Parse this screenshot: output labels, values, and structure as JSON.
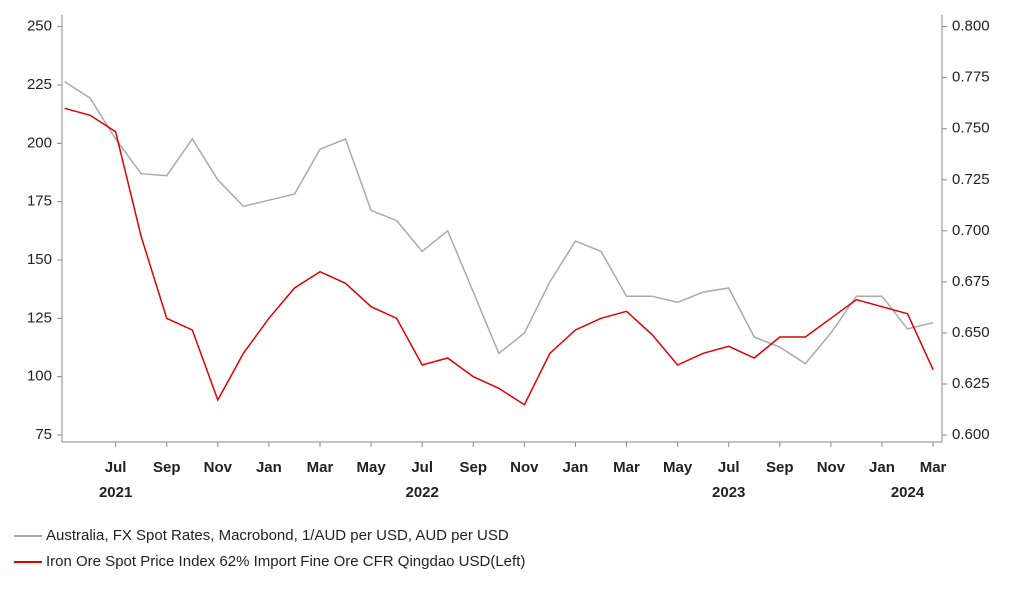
{
  "chart_data": {
    "type": "line",
    "x": [
      "2021-05",
      "2021-06",
      "2021-07",
      "2021-08",
      "2021-09",
      "2021-10",
      "2021-11",
      "2021-12",
      "2022-01",
      "2022-02",
      "2022-03",
      "2022-04",
      "2022-05",
      "2022-06",
      "2022-07",
      "2022-08",
      "2022-09",
      "2022-10",
      "2022-11",
      "2022-12",
      "2023-01",
      "2023-02",
      "2023-03",
      "2023-04",
      "2023-05",
      "2023-06",
      "2023-07",
      "2023-08",
      "2023-09",
      "2023-10",
      "2023-11",
      "2023-12",
      "2024-01",
      "2024-02",
      "2024-03"
    ],
    "series": [
      {
        "name": "Australia, FX Spot Rates, Macrobond, 1/AUD per USD, AUD per USD",
        "color": "#aaaaaa",
        "axis": "y2",
        "values": [
          0.773,
          0.765,
          0.745,
          0.728,
          0.727,
          0.745,
          0.725,
          0.712,
          0.715,
          0.718,
          0.74,
          0.745,
          0.71,
          0.705,
          0.69,
          0.7,
          0.67,
          0.64,
          0.65,
          0.675,
          0.695,
          0.69,
          0.668,
          0.668,
          0.665,
          0.67,
          0.672,
          0.648,
          0.643,
          0.635,
          0.65,
          0.668,
          0.668,
          0.652,
          0.655
        ]
      },
      {
        "name": "Iron Ore Spot Price Index 62% Import Fine Ore CFR Qingdao USD(Left)",
        "color": "#e00000",
        "values": [
          215,
          212,
          205,
          160,
          125,
          120,
          90,
          110,
          125,
          138,
          145,
          140,
          130,
          125,
          105,
          108,
          100,
          95,
          88,
          110,
          120,
          125,
          128,
          118,
          105,
          110,
          113,
          108,
          117,
          117,
          125,
          133,
          130,
          127,
          103
        ]
      }
    ],
    "ylim": [
      72,
      255
    ],
    "yticks": [
      75,
      100,
      125,
      150,
      175,
      200,
      225,
      250
    ],
    "y2lim": [
      0.5966,
      0.8057
    ],
    "y2ticks": [
      {
        "value": 0.6,
        "label": "0.600"
      },
      {
        "value": 0.625,
        "label": "0.625"
      },
      {
        "value": 0.65,
        "label": "0.650"
      },
      {
        "value": 0.675,
        "label": "0.675"
      },
      {
        "value": 0.7,
        "label": "0.700"
      },
      {
        "value": 0.725,
        "label": "0.725"
      },
      {
        "value": 0.75,
        "label": "0.750"
      },
      {
        "value": 0.775,
        "label": "0.775"
      },
      {
        "value": 0.8,
        "label": "0.800"
      }
    ],
    "xticks": [
      {
        "value": "2021-07",
        "label": "Jul"
      },
      {
        "value": "2021-09",
        "label": "Sep"
      },
      {
        "value": "2021-11",
        "label": "Nov"
      },
      {
        "value": "2022-01",
        "label": "Jan"
      },
      {
        "value": "2022-03",
        "label": "Mar"
      },
      {
        "value": "2022-05",
        "label": "May"
      },
      {
        "value": "2022-07",
        "label": "Jul"
      },
      {
        "value": "2022-09",
        "label": "Sep"
      },
      {
        "value": "2022-11",
        "label": "Nov"
      },
      {
        "value": "2023-01",
        "label": "Jan"
      },
      {
        "value": "2023-03",
        "label": "Mar"
      },
      {
        "value": "2023-05",
        "label": "May"
      },
      {
        "value": "2023-07",
        "label": "Jul"
      },
      {
        "value": "2023-09",
        "label": "Sep"
      },
      {
        "value": "2023-11",
        "label": "Nov"
      },
      {
        "value": "2024-01",
        "label": "Jan"
      },
      {
        "value": "2024-03",
        "label": "Mar"
      }
    ],
    "year_labels": [
      {
        "value": "2021-07",
        "label": "2021"
      },
      {
        "value": "2022-07",
        "label": "2022"
      },
      {
        "value": "2023-07",
        "label": "2023"
      },
      {
        "value": "2024-02",
        "label": "2024"
      }
    ]
  }
}
